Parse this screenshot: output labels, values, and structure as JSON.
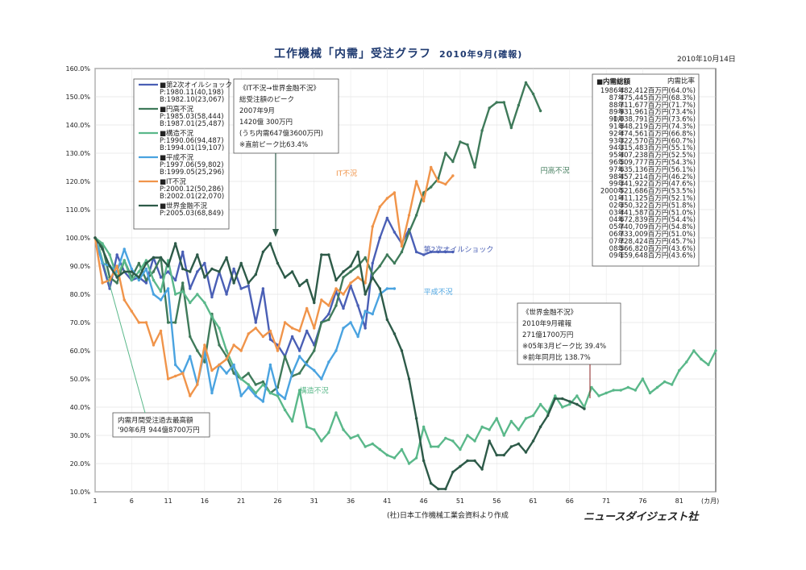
{
  "page": {
    "title": "工作機械「内需」受注グラフ",
    "subtitle": "2010年9月(確報)",
    "date": "2010年10月14日",
    "source": "(社)日本工作機械工業会資料より作成",
    "publisher": "ニュースダイジェスト社",
    "x_unit": "(カ月)"
  },
  "legend": [
    {
      "name": "■第2次オイルショック",
      "p": "P:1980.11(40,198)",
      "b": "B:1982.10(23,067)",
      "color": "#4a5fb5"
    },
    {
      "name": "■円高不況",
      "p": "P:1985.03(58,444)",
      "b": "B:1987.01(25,487)",
      "color": "#3f7a5a"
    },
    {
      "name": "■構造不況",
      "p": "P:1990.06(94,487)",
      "b": "B:1994.01(19,107)",
      "color": "#5ab88a"
    },
    {
      "name": "■平成不況",
      "p": "P:1997.06(59,802)",
      "b": "B:1999.05(25,296)",
      "color": "#4aa3e0"
    },
    {
      "name": "■IT不況",
      "p": "P:2000.12(50,286)",
      "b": "B:2002.01(22,070)",
      "color": "#f0944a"
    },
    {
      "name": "■世界金融不況",
      "p": "P:2005.03(68,849)",
      "b": "",
      "color": "#2d5a48"
    }
  ],
  "box_it": {
    "lines": [
      "《IT不況→世界金融不況》",
      "総受注額のピーク",
      "2007年9月",
      "1420億 300万円",
      "(うち内需647億3600万円)",
      "※直前ピーク比63.4%"
    ]
  },
  "box_world": {
    "lines": [
      "《世界金融不況》",
      "2010年9月確報",
      "271億1700万円",
      "※05年3月ピーク比 39.4%",
      "※前年同月比 138.7%"
    ]
  },
  "box_max": {
    "lines": [
      "内需月間受注過去最高額",
      "'90年6月 944億8700万円"
    ]
  },
  "total_table": {
    "header": "■内需総額",
    "col": "内需比率",
    "rows": [
      [
        "1986年",
        "482,412百万円(64.0%)"
      ],
      [
        "87年",
        "475,445百万円(68.3%)"
      ],
      [
        "88年",
        "711,677百万円(71.7%)"
      ],
      [
        "89年",
        "931,961百万円(73.4%)"
      ],
      [
        "90年",
        "1,038,791百万円(73.6%)"
      ],
      [
        "91年",
        "848,219百万円(74.3%)"
      ],
      [
        "92年",
        "474,561百万円(66.8%)"
      ],
      [
        "93年",
        "322,570百万円(60.7%)"
      ],
      [
        "94年",
        "315,483百万円(55.1%)"
      ],
      [
        "95年",
        "407,238百万円(52.5%)"
      ],
      [
        "96年",
        "509,777百万円(54.3%)"
      ],
      [
        "97年",
        "635,136百万円(56.1%)"
      ],
      [
        "98年",
        "457,214百万円(46.2%)"
      ],
      [
        "99年",
        "341,922百万円(47.6%)"
      ],
      [
        "2000年",
        "521,686百万円(53.5%)"
      ],
      [
        "01年",
        "411,125百万円(52.1%)"
      ],
      [
        "02年",
        "350,322百万円(51.8%)"
      ],
      [
        "03年",
        "441,587百万円(51.0%)"
      ],
      [
        "04年",
        "672,839百万円(54.4%)"
      ],
      [
        "05年",
        "740,709百万円(54.8%)"
      ],
      [
        "06年",
        "733,009百万円(51.0%)"
      ],
      [
        "07年",
        "728,424百万円(45.7%)"
      ],
      [
        "08年",
        "566,820百万円(43.6%)"
      ],
      [
        "09年",
        "159,648百万円(43.6%)"
      ]
    ]
  },
  "chart_data": {
    "type": "line",
    "x_ticks": [
      1,
      6,
      11,
      16,
      21,
      26,
      31,
      36,
      41,
      46,
      51,
      56,
      61,
      66,
      71,
      76,
      81
    ],
    "y_ticks": [
      "10.0%",
      "20.0%",
      "30.0%",
      "40.0%",
      "50.0%",
      "60.0%",
      "70.0%",
      "80.0%",
      "90.0%",
      "100.0%",
      "110.0%",
      "120.0%",
      "130.0%",
      "140.0%",
      "150.0%",
      "160.0%"
    ],
    "xlim": [
      1,
      86
    ],
    "ylim": [
      10,
      160
    ],
    "annotations": [
      {
        "text": "IT不況",
        "x": 34,
        "y": 122,
        "color": "#f0944a"
      },
      {
        "text": "円高不況",
        "x": 62,
        "y": 123,
        "color": "#3f7a5a"
      },
      {
        "text": "第2次オイルショック",
        "x": 46,
        "y": 95,
        "color": "#4a5fb5"
      },
      {
        "text": "平成不況",
        "x": 46,
        "y": 80,
        "color": "#4aa3e0"
      },
      {
        "text": "構造不況",
        "x": 29,
        "y": 45,
        "color": "#5ab88a"
      }
    ],
    "series": [
      {
        "name": "■第2次オイルショック",
        "color": "#4a5fb5",
        "values": [
          100,
          91,
          82,
          94,
          88,
          85,
          86,
          84,
          93,
          86,
          88,
          85,
          95,
          82,
          88,
          91,
          79,
          88,
          80,
          89,
          82,
          83,
          70,
          82,
          64,
          62,
          58,
          65,
          60,
          67,
          62,
          70,
          73,
          81,
          75,
          83,
          76,
          68,
          91,
          100,
          107,
          102,
          98,
          103,
          95,
          94,
          95,
          95,
          95,
          95
        ]
      },
      {
        "name": "■円高不況",
        "color": "#3f7a5a",
        "values": [
          100,
          97,
          86,
          84,
          92,
          86,
          91,
          85,
          88,
          93,
          70,
          70,
          84,
          65,
          60,
          56,
          73,
          62,
          58,
          52,
          50,
          52,
          48,
          49,
          45,
          47,
          58,
          51,
          52,
          56,
          60,
          70,
          71,
          76,
          86,
          88,
          90,
          93,
          87,
          90,
          94,
          91,
          95,
          102,
          108,
          116,
          118,
          121,
          130,
          127,
          134,
          133,
          125,
          138,
          146,
          148,
          148,
          139,
          147,
          155,
          151,
          145
        ]
      },
      {
        "name": "■構造不況",
        "color": "#5ab88a",
        "values": [
          100,
          98,
          94,
          86,
          92,
          85,
          88,
          92,
          85,
          81,
          92,
          80,
          81,
          77,
          80,
          77,
          72,
          68,
          60,
          54,
          50,
          48,
          45,
          48,
          45,
          44,
          39,
          35,
          46,
          33,
          32,
          28,
          31,
          38,
          32,
          29,
          30,
          26,
          27,
          25,
          23,
          22,
          25,
          20,
          22,
          33,
          26,
          26,
          29,
          28,
          25,
          30,
          28,
          33,
          32,
          36,
          30,
          35,
          32,
          36,
          37,
          41,
          38,
          44,
          40,
          41,
          44,
          40,
          47,
          44,
          45,
          46,
          46,
          47,
          46,
          50,
          45,
          47,
          49,
          48,
          53,
          56,
          60,
          57,
          55,
          60
        ]
      },
      {
        "name": "■平成不況",
        "color": "#4aa3e0",
        "values": [
          100,
          91,
          90,
          88,
          96,
          89,
          85,
          89,
          80,
          78,
          82,
          55,
          52,
          58,
          48,
          60,
          45,
          55,
          52,
          55,
          44,
          47,
          44,
          42,
          55,
          45,
          43,
          52,
          58,
          55,
          53,
          50,
          56,
          60,
          68,
          70,
          65,
          74,
          73,
          80,
          82,
          82
        ]
      },
      {
        "name": "■IT不況",
        "color": "#f0944a",
        "values": [
          100,
          84,
          85,
          90,
          78,
          74,
          70,
          70,
          62,
          67,
          50,
          51,
          52,
          44,
          48,
          62,
          53,
          55,
          57,
          62,
          60,
          66,
          68,
          65,
          67,
          60,
          70,
          68,
          67,
          75,
          68,
          78,
          76,
          82,
          80,
          84,
          86,
          84,
          104,
          111,
          114,
          116,
          97,
          108,
          120,
          113,
          125,
          120,
          119,
          122
        ]
      },
      {
        "name": "■世界金融不況",
        "color": "#2d5a48",
        "values": [
          100,
          96,
          90,
          86,
          88,
          88,
          86,
          91,
          93,
          93,
          90,
          98,
          89,
          88,
          94,
          86,
          89,
          88,
          93,
          84,
          91,
          84,
          87,
          95,
          98,
          91,
          86,
          88,
          83,
          85,
          77,
          94,
          94,
          85,
          88,
          90,
          95,
          80,
          86,
          82,
          71,
          66,
          60,
          50,
          36,
          21,
          13,
          11,
          11,
          17,
          19,
          21,
          21,
          18,
          28,
          23,
          23,
          26,
          27,
          24,
          28,
          33,
          37,
          43,
          43,
          42,
          41,
          39.4
        ]
      }
    ]
  }
}
